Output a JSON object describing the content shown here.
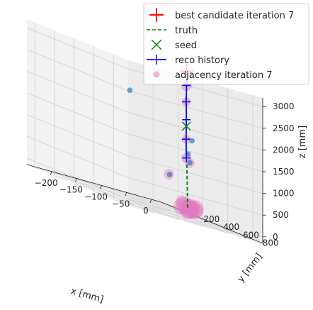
{
  "chart_data": {
    "type": "scatter",
    "projection": "3d",
    "title": "",
    "xlabel": "x [mm]",
    "ylabel": "y [mm]",
    "zlabel": "z [mm]",
    "xlim": [
      -250,
      20
    ],
    "ylim": [
      -80,
      950
    ],
    "zlim": [
      -150,
      3200
    ],
    "x_ticks": [
      -200,
      -150,
      -100,
      -50,
      0
    ],
    "y_ticks": [
      0,
      200,
      400,
      600,
      800
    ],
    "z_ticks": [
      0,
      500,
      1000,
      1500,
      2000,
      2500,
      3000
    ],
    "grid": true,
    "legend": {
      "position": "top-right",
      "entries": [
        {
          "label": "best candidate iteration 7",
          "marker": "plus",
          "color": "#ff0000"
        },
        {
          "label": "truth",
          "marker": "dashed-line",
          "color": "#008000"
        },
        {
          "label": "seed",
          "marker": "x",
          "color": "#008000"
        },
        {
          "label": "reco history",
          "marker": "line-plus",
          "color": "#0000ff"
        },
        {
          "label": "adjacency iteration 7",
          "marker": "circle",
          "color": "#e377c2"
        }
      ]
    },
    "series": [
      {
        "name": "truth",
        "style": "dashed",
        "color": "#008000",
        "points": [
          [
            -10,
            330,
            1000
          ],
          [
            -28,
            430,
            0
          ]
        ]
      },
      {
        "name": "reco history",
        "style": "line-plus",
        "color": "#0000ff",
        "points": [
          [
            -10,
            330,
            3150
          ],
          [
            -11,
            332,
            2820
          ],
          [
            -12,
            334,
            2440
          ],
          [
            -12,
            336,
            2030
          ],
          [
            -13,
            338,
            1580
          ],
          [
            -13,
            341,
            1150
          ]
        ]
      },
      {
        "name": "seed",
        "marker": "x",
        "color": "#008000",
        "points": [
          [
            -12,
            336,
            1880
          ]
        ]
      },
      {
        "name": "best candidate iteration 7",
        "marker": "plus",
        "color": "#ff0000",
        "points": [
          [
            -10,
            330,
            3150
          ]
        ]
      },
      {
        "name": "adjacency iteration 7",
        "marker": "circle",
        "color": "#e377c2",
        "points": [
          [
            -10,
            330,
            3150,
            180
          ],
          [
            -11,
            332,
            2820,
            110
          ],
          [
            -12,
            334,
            2440,
            70
          ],
          [
            -13,
            340,
            1580,
            70
          ],
          [
            -13,
            341,
            1150,
            90
          ],
          [
            -5,
            335,
            1050,
            80
          ],
          [
            -40,
            300,
            650,
            90
          ],
          [
            -30,
            380,
            130,
            130
          ],
          [
            -28,
            400,
            60,
            260
          ],
          [
            -20,
            410,
            0,
            280
          ],
          [
            -12,
            420,
            40,
            300
          ],
          [
            -35,
            400,
            20,
            220
          ],
          [
            -25,
            430,
            0,
            320
          ],
          [
            -18,
            425,
            30,
            260
          ],
          [
            -22,
            415,
            80,
            200
          ],
          [
            -30,
            435,
            40,
            240
          ],
          [
            -15,
            440,
            10,
            220
          ]
        ]
      },
      {
        "name": "hits",
        "marker": "circle",
        "color": "#1f77b4",
        "points": [
          [
            -150,
            460,
            2380
          ],
          [
            -1,
            337,
            1580
          ],
          [
            -4,
            331,
            1060
          ],
          [
            -39,
            303,
            650
          ],
          [
            -8,
            333,
            1250
          ]
        ]
      }
    ]
  }
}
